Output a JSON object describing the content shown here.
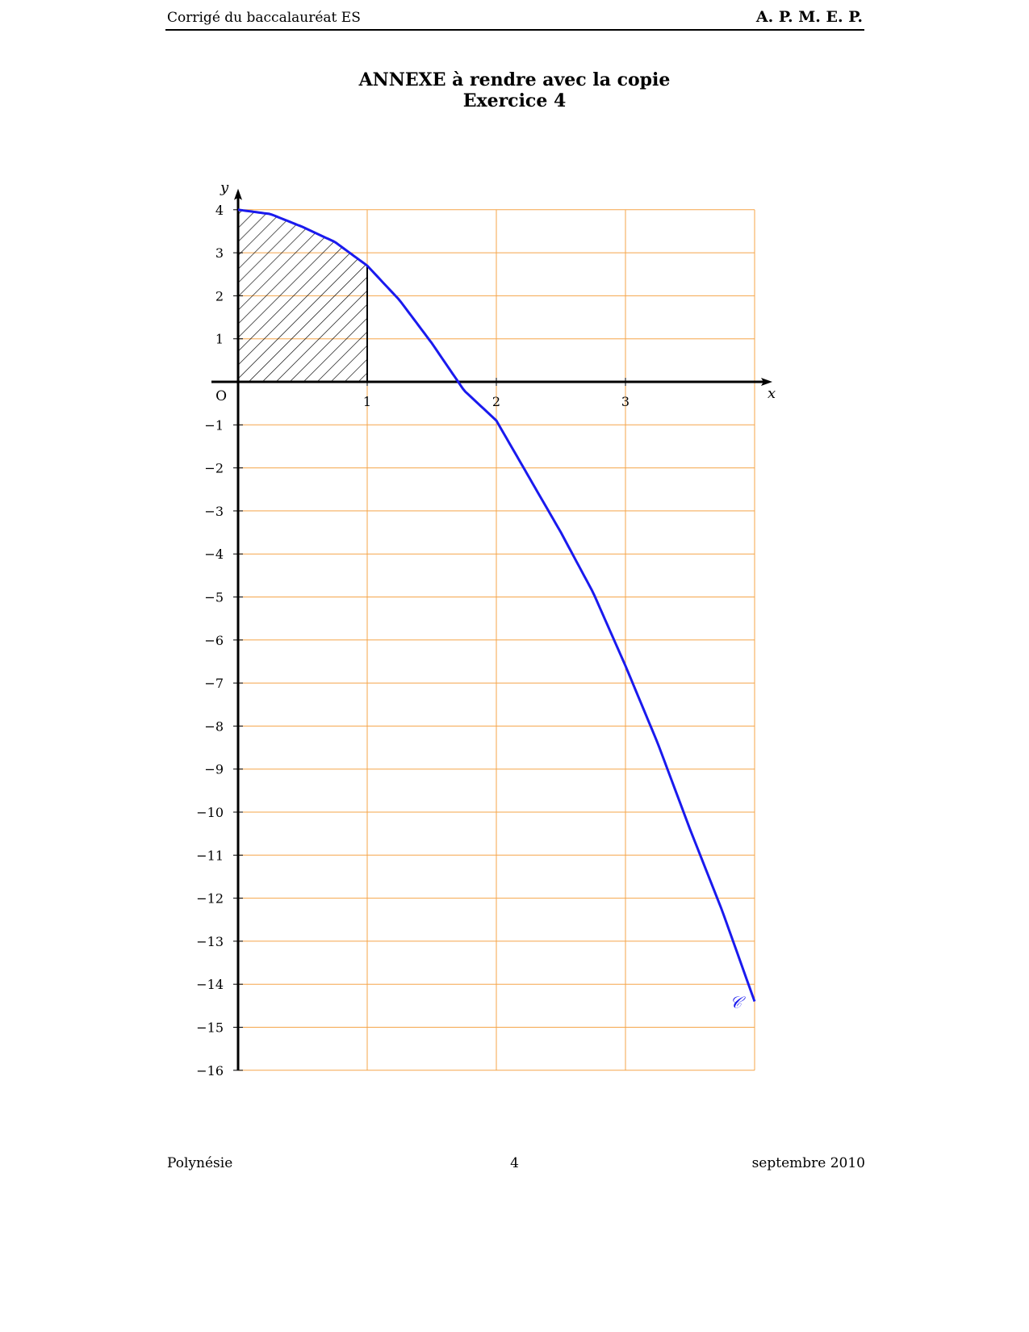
{
  "header": {
    "left_text": "Corrigé du baccalauréat ES",
    "right_text": "A. P. M. E. P."
  },
  "title": {
    "line1": "ANNEXE à rendre avec la copie",
    "line2": "Exercice 4"
  },
  "chart_data": {
    "type": "line",
    "xlim": [
      0,
      4
    ],
    "ylim": [
      -16,
      4
    ],
    "xlabel": "x",
    "ylabel": "y",
    "origin_label": "O",
    "x_ticks": [
      1,
      2,
      3
    ],
    "x_tick_labels": [
      "1",
      "2",
      "3"
    ],
    "y_ticks": [
      4,
      3,
      2,
      1,
      -1,
      -2,
      -3,
      -4,
      -5,
      -6,
      -7,
      -8,
      -9,
      -10,
      -11,
      -12,
      -13,
      -14,
      -15,
      -16
    ],
    "y_tick_labels": [
      "4",
      "3",
      "2",
      "1",
      "−1",
      "−2",
      "−3",
      "−4",
      "−5",
      "−6",
      "−7",
      "−8",
      "−9",
      "−10",
      "−11",
      "−12",
      "−13",
      "−14",
      "−15",
      "−16"
    ],
    "grid": true,
    "grid_color": "#f5a54a",
    "curve_color": "#1a1aee",
    "series": [
      {
        "name": "𝒞",
        "x": [
          0,
          0.25,
          0.5,
          0.75,
          1,
          1.25,
          1.5,
          1.75,
          2,
          2.25,
          2.5,
          2.75,
          3,
          3.25,
          3.5,
          3.75,
          4
        ],
        "y": [
          4,
          3.9,
          3.6,
          3.25,
          2.7,
          1.9,
          0.9,
          -0.2,
          -0.9,
          -2.2,
          -3.5,
          -4.9,
          -6.6,
          -8.4,
          -10.4,
          -12.3,
          -14.4
        ]
      }
    ],
    "shaded_region": {
      "x_from": 0,
      "x_to": 1,
      "pattern": "hatched"
    }
  },
  "footer": {
    "left_text": "Polynésie",
    "center_text": "4",
    "right_text": "septembre 2010"
  }
}
